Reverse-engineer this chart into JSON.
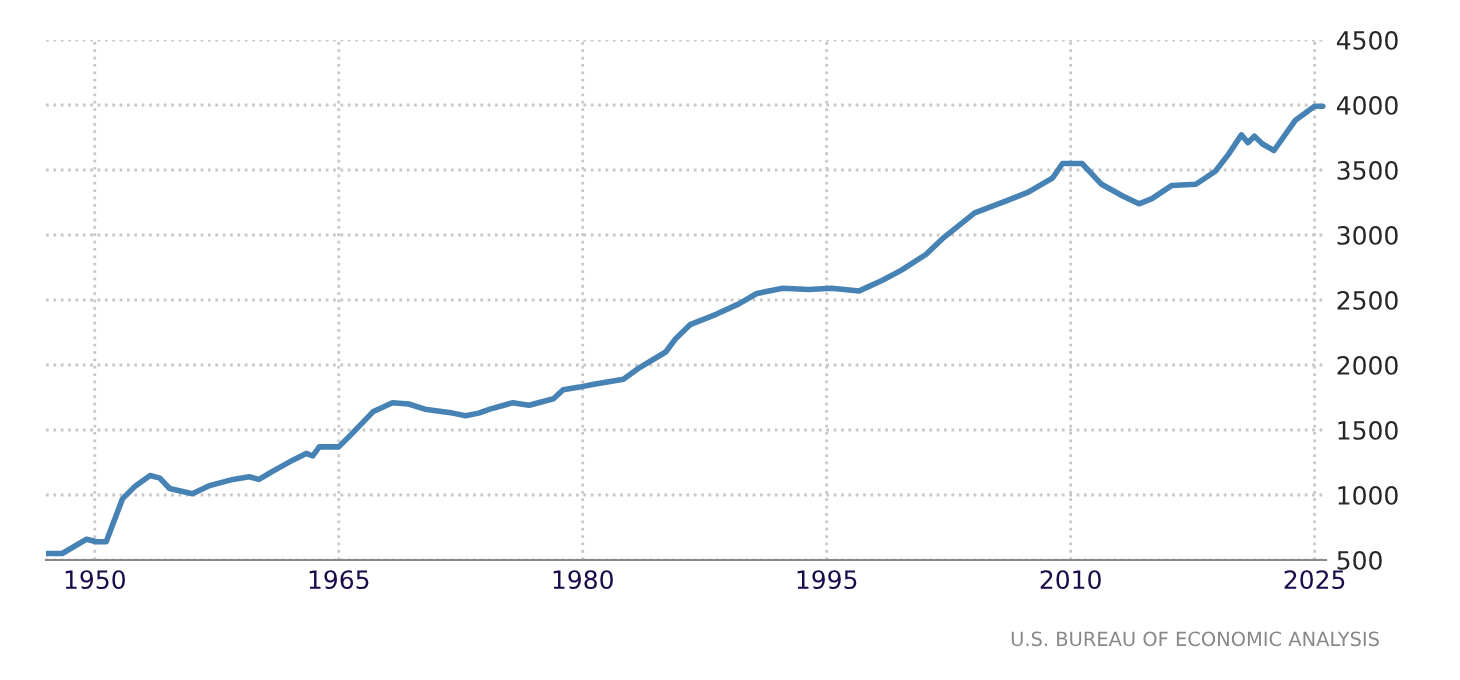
{
  "chart_data": {
    "type": "line",
    "x": [
      1947.0,
      1948.0,
      1949.5,
      1950.1,
      1950.7,
      1951.7,
      1952.5,
      1953.4,
      1954.0,
      1954.6,
      1956.0,
      1957.0,
      1958.5,
      1959.5,
      1960.1,
      1960.9,
      1962.2,
      1963.0,
      1963.4,
      1963.8,
      1965.0,
      1965.8,
      1967.1,
      1968.3,
      1969.3,
      1970.3,
      1972.0,
      1972.8,
      1973.6,
      1974.3,
      1975.7,
      1976.7,
      1978.2,
      1978.8,
      1979.8,
      1980.6,
      1982.5,
      1983.5,
      1985.1,
      1985.7,
      1986.6,
      1988.2,
      1989.6,
      1990.7,
      1992.3,
      1993.9,
      1995.3,
      1997.0,
      1998.4,
      1999.6,
      2001.1,
      2002.1,
      2004.1,
      2006.0,
      2007.4,
      2008.9,
      2009.5,
      2010.7,
      2011.9,
      2013.2,
      2014.2,
      2015.0,
      2016.2,
      2017.7,
      2018.9,
      2019.7,
      2020.5,
      2020.9,
      2021.3,
      2021.8,
      2022.5,
      2023.8,
      2025.0,
      2025.5
    ],
    "series": [
      {
        "color": "#4682b4",
        "values": [
          550,
          550,
          660,
          640,
          640,
          970,
          1070,
          1150,
          1130,
          1050,
          1010,
          1070,
          1120,
          1140,
          1120,
          1180,
          1270,
          1320,
          1300,
          1370,
          1370,
          1470,
          1640,
          1710,
          1700,
          1660,
          1630,
          1610,
          1630,
          1660,
          1710,
          1690,
          1740,
          1810,
          1830,
          1850,
          1890,
          1980,
          2100,
          2200,
          2310,
          2390,
          2470,
          2550,
          2590,
          2580,
          2590,
          2570,
          2650,
          2730,
          2850,
          2970,
          3170,
          3260,
          3330,
          3440,
          3550,
          3550,
          3390,
          3300,
          3240,
          3280,
          3380,
          3390,
          3490,
          3620,
          3770,
          3710,
          3760,
          3700,
          3650,
          3880,
          3990,
          3990
        ]
      }
    ],
    "xlim": [
      1947,
      2025.7
    ],
    "xticks": [
      1950,
      1965,
      1980,
      1995,
      2010,
      2025
    ],
    "ylim": [
      500,
      4500
    ],
    "yticks": [
      500,
      1000,
      1500,
      2000,
      2500,
      3000,
      3500,
      4000,
      4500
    ],
    "grid": true,
    "line_style": "solid",
    "marker": "none",
    "annotations": [
      "U.S. BUREAU OF ECONOMIC ANALYSIS"
    ]
  }
}
